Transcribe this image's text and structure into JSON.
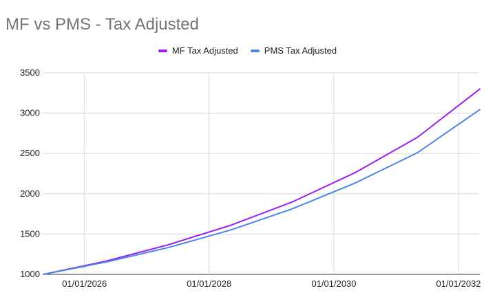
{
  "chart_data": {
    "type": "line",
    "title": "MF vs PMS - Tax Adjusted",
    "xlabel": "",
    "ylabel": "",
    "x": [
      "2025-05-05",
      "2026-05-05",
      "2027-05-05",
      "2028-05-05",
      "2029-05-05",
      "2030-05-05",
      "2031-05-05",
      "2032-05-05"
    ],
    "series": [
      {
        "name": "MF Tax Adjusted",
        "color": "#9c1ef0",
        "values": [
          1000,
          1163,
          1366,
          1608,
          1901,
          2262,
          2700,
          3300
        ]
      },
      {
        "name": "PMS Tax Adjusted",
        "color": "#4a86e8",
        "values": [
          1000,
          1152,
          1332,
          1550,
          1815,
          2133,
          2509,
          3045
        ]
      }
    ],
    "ylim": [
      1000,
      3500
    ],
    "yticks": [
      "1000",
      "1500",
      "2000",
      "2500",
      "3000",
      "3500"
    ],
    "xticks": [
      {
        "label": "01/01/2026",
        "date": "2026-01-01"
      },
      {
        "label": "01/01/2028",
        "date": "2028-01-01"
      },
      {
        "label": "01/01/2030",
        "date": "2030-01-01"
      },
      {
        "label": "01/01/2032",
        "date": "2032-01-01"
      }
    ],
    "xlim": [
      "2025-05-05",
      "2032-05-05"
    ],
    "grid": true,
    "legend_position": "top-center"
  }
}
